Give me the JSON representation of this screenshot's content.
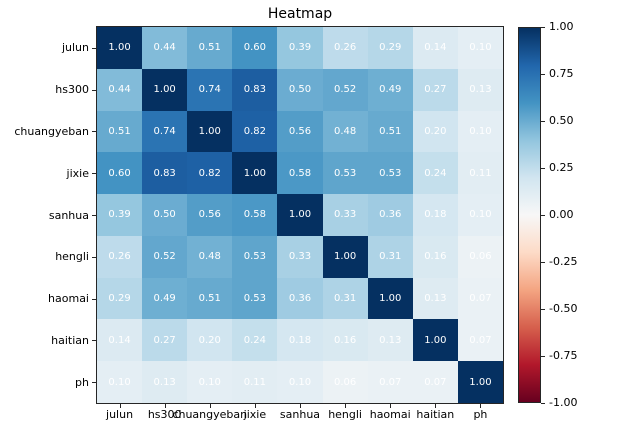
{
  "chart_data": {
    "type": "heatmap",
    "title": "Heatmap",
    "categories": [
      "julun",
      "hs300",
      "chuangyeban",
      "jixie",
      "sanhua",
      "hengli",
      "haomai",
      "haitian",
      "ph"
    ],
    "matrix": [
      [
        1.0,
        0.44,
        0.51,
        0.6,
        0.39,
        0.26,
        0.29,
        0.14,
        0.1
      ],
      [
        0.44,
        1.0,
        0.74,
        0.83,
        0.5,
        0.52,
        0.49,
        0.27,
        0.13
      ],
      [
        0.51,
        0.74,
        1.0,
        0.82,
        0.56,
        0.48,
        0.51,
        0.2,
        0.1
      ],
      [
        0.6,
        0.83,
        0.82,
        1.0,
        0.58,
        0.53,
        0.53,
        0.24,
        0.11
      ],
      [
        0.39,
        0.5,
        0.56,
        0.58,
        1.0,
        0.33,
        0.36,
        0.18,
        0.1
      ],
      [
        0.26,
        0.52,
        0.48,
        0.53,
        0.33,
        1.0,
        0.31,
        0.16,
        0.06
      ],
      [
        0.29,
        0.49,
        0.51,
        0.53,
        0.36,
        0.31,
        1.0,
        0.13,
        0.07
      ],
      [
        0.14,
        0.27,
        0.2,
        0.24,
        0.18,
        0.16,
        0.13,
        1.0,
        0.07
      ],
      [
        0.1,
        0.13,
        0.1,
        0.11,
        0.1,
        0.06,
        0.07,
        0.07,
        1.0
      ]
    ],
    "value_decimals": 2,
    "cell_text_color": "#ffffff",
    "vmin": -1,
    "vmax": 1,
    "colormap": "RdBu",
    "colormap_stops": [
      {
        "v": -1.0,
        "color": "#67001f"
      },
      {
        "v": -0.8,
        "color": "#b2182b"
      },
      {
        "v": -0.6,
        "color": "#d6604d"
      },
      {
        "v": -0.4,
        "color": "#f4a582"
      },
      {
        "v": -0.2,
        "color": "#fddbc7"
      },
      {
        "v": 0.0,
        "color": "#f7f7f7"
      },
      {
        "v": 0.2,
        "color": "#d1e5f0"
      },
      {
        "v": 0.4,
        "color": "#92c5de"
      },
      {
        "v": 0.6,
        "color": "#4393c3"
      },
      {
        "v": 0.8,
        "color": "#2166ac"
      },
      {
        "v": 1.0,
        "color": "#053061"
      }
    ],
    "colorbar_ticks": [
      {
        "value": 1.0,
        "label": "1.00"
      },
      {
        "value": 0.75,
        "label": "0.75"
      },
      {
        "value": 0.5,
        "label": "0.50"
      },
      {
        "value": 0.25,
        "label": "0.25"
      },
      {
        "value": 0.0,
        "label": "0.00"
      },
      {
        "value": -0.25,
        "label": "-0.25"
      },
      {
        "value": -0.5,
        "label": "-0.50"
      },
      {
        "value": -0.75,
        "label": "-0.75"
      },
      {
        "value": -1.0,
        "label": "-1.00"
      }
    ],
    "legend_position": "right",
    "grid": false
  }
}
